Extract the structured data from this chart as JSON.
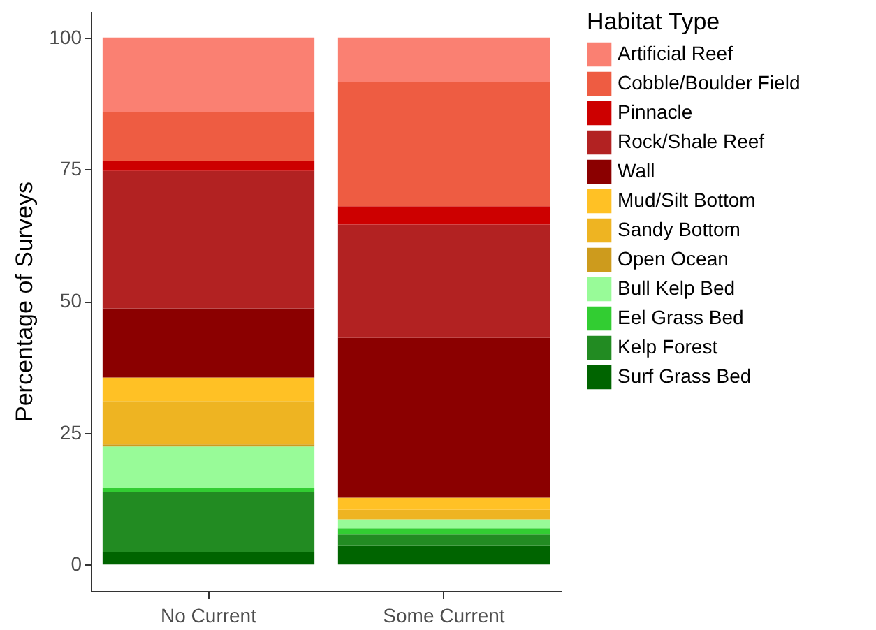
{
  "chart_data": {
    "type": "bar",
    "stacked": true,
    "ylabel": "Percentage of Surveys",
    "legend_title": "Habitat Type",
    "legend": "right",
    "grid": false,
    "categories": [
      "No Current",
      "Some Current"
    ],
    "ylim": [
      -5,
      105
    ],
    "yticks": [
      0,
      25,
      50,
      75,
      100
    ],
    "series": [
      {
        "name": "Surf Grass Bed",
        "color": "#006400",
        "values": [
          2.4,
          3.5
        ]
      },
      {
        "name": "Kelp Forest",
        "color": "#228b22",
        "values": [
          11.4,
          2.2
        ]
      },
      {
        "name": "Eel Grass Bed",
        "color": "#32cd32",
        "values": [
          0.8,
          1.2
        ]
      },
      {
        "name": "Bull Kelp Bed",
        "color": "#98fb98",
        "values": [
          7.8,
          1.7
        ]
      },
      {
        "name": "Open Ocean",
        "color": "#cd9b1d",
        "values": [
          0.4,
          0
        ]
      },
      {
        "name": "Sandy Bottom",
        "color": "#eeb422",
        "values": [
          8.2,
          1.8
        ]
      },
      {
        "name": "Mud/Silt Bottom",
        "color": "#ffc125",
        "values": [
          4.5,
          2.3
        ]
      },
      {
        "name": "Wall",
        "color": "#8b0000",
        "values": [
          13.1,
          30.3
        ]
      },
      {
        "name": "Rock/Shale Reef",
        "color": "#b22222",
        "values": [
          26.1,
          21.5
        ]
      },
      {
        "name": "Pinnacle",
        "color": "#cd0000",
        "values": [
          1.8,
          3.5
        ]
      },
      {
        "name": "Cobble/Boulder Field",
        "color": "#ee5c42",
        "values": [
          9.4,
          23.6
        ]
      },
      {
        "name": "Artificial Reef",
        "color": "#fa8072",
        "values": [
          14.1,
          8.4
        ]
      }
    ]
  }
}
